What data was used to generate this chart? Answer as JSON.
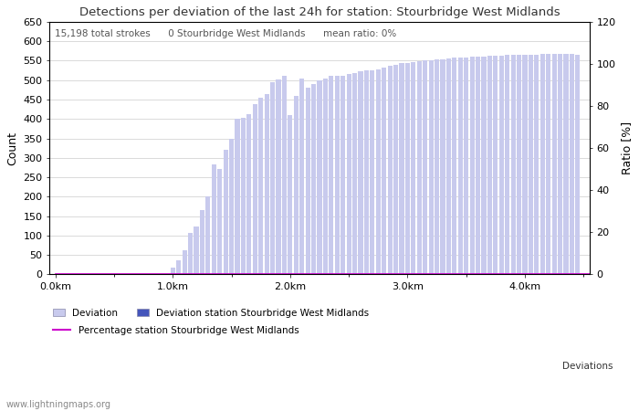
{
  "title": "Detections per deviation of the last 24h for station: Stourbridge West Midlands",
  "ylabel_left": "Count",
  "ylabel_right": "Ratio [%]",
  "annotation": "15,198 total strokes      0 Stourbridge West Midlands      mean ratio: 0%",
  "ylim_left": [
    0,
    650
  ],
  "ylim_right": [
    0,
    120
  ],
  "yticks_left": [
    0,
    50,
    100,
    150,
    200,
    250,
    300,
    350,
    400,
    450,
    500,
    550,
    600,
    650
  ],
  "yticks_right": [
    0,
    20,
    40,
    60,
    80,
    100,
    120
  ],
  "xtick_labels": [
    "0.0km",
    "1.0km",
    "2.0km",
    "3.0km",
    "4.0km"
  ],
  "xtick_positions": [
    0.0,
    1.0,
    2.0,
    3.0,
    4.0
  ],
  "bar_width": 0.04,
  "bar_positions": [
    0.05,
    0.1,
    0.15,
    0.2,
    0.25,
    0.3,
    0.35,
    0.4,
    0.45,
    0.5,
    0.55,
    0.6,
    0.65,
    0.7,
    0.75,
    0.8,
    0.85,
    0.9,
    0.95,
    1.0,
    1.05,
    1.1,
    1.15,
    1.2,
    1.25,
    1.3,
    1.35,
    1.4,
    1.45,
    1.5,
    1.55,
    1.6,
    1.65,
    1.7,
    1.75,
    1.8,
    1.85,
    1.9,
    1.95,
    2.0,
    2.05,
    2.1,
    2.15,
    2.2,
    2.25,
    2.3,
    2.35,
    2.4,
    2.45,
    2.5,
    2.55,
    2.6,
    2.65,
    2.7,
    2.75,
    2.8,
    2.85,
    2.9,
    2.95,
    3.0,
    3.05,
    3.1,
    3.15,
    3.2,
    3.25,
    3.3,
    3.35,
    3.4,
    3.45,
    3.5,
    3.55,
    3.6,
    3.65,
    3.7,
    3.75,
    3.8,
    3.85,
    3.9,
    3.95,
    4.0,
    4.05,
    4.1,
    4.15,
    4.2,
    4.25,
    4.3,
    4.35,
    4.4,
    4.45
  ],
  "bar_heights_all": [
    0,
    0,
    0,
    0,
    0,
    0,
    0,
    0,
    0,
    0,
    0,
    0,
    0,
    0,
    0,
    0,
    0,
    0,
    0,
    18,
    37,
    62,
    107,
    122,
    165,
    200,
    283,
    272,
    320,
    350,
    400,
    402,
    412,
    437,
    455,
    465,
    495,
    502,
    510,
    410,
    460,
    505,
    480,
    490,
    500,
    505,
    510,
    510,
    510,
    515,
    518,
    522,
    525,
    525,
    528,
    532,
    536,
    540,
    543,
    545,
    547,
    548,
    550,
    552,
    553,
    554,
    555,
    557,
    558,
    558,
    560,
    560,
    561,
    562,
    563,
    563,
    564,
    565,
    565,
    566,
    566,
    566,
    567,
    568,
    568,
    568,
    567,
    567,
    565
  ],
  "bar_heights_station": [
    0,
    0,
    0,
    0,
    0,
    0,
    0,
    0,
    0,
    0,
    0,
    0,
    0,
    0,
    0,
    0,
    0,
    0,
    0,
    0,
    0,
    0,
    0,
    0,
    0,
    0,
    0,
    0,
    0,
    0,
    0,
    0,
    0,
    0,
    0,
    0,
    0,
    0,
    0,
    0,
    0,
    0,
    0,
    0,
    0,
    0,
    0,
    0,
    0,
    0,
    0,
    0,
    0,
    0,
    0,
    0,
    0,
    0,
    0,
    0,
    0,
    0,
    0,
    0,
    0,
    0,
    0,
    0,
    0,
    0,
    0,
    0,
    0,
    0,
    0,
    0,
    0,
    0,
    0,
    0,
    0,
    0,
    0,
    0,
    0,
    0,
    0,
    0,
    0
  ],
  "percentage_line_y": 0,
  "color_bar_all": "#c8caed",
  "color_bar_station": "#4455bb",
  "color_percentage_line": "#cc00cc",
  "color_grid": "#cccccc",
  "color_title": "#333333",
  "color_annotation": "#555555",
  "legend_items": [
    {
      "label": "Deviation",
      "type": "bar",
      "color": "#c8caed"
    },
    {
      "label": "Deviation station Stourbridge West Midlands",
      "type": "bar",
      "color": "#4455bb"
    },
    {
      "label": "Percentage station Stourbridge West Midlands",
      "type": "line",
      "color": "#cc00cc"
    }
  ],
  "deviations_label": "Deviations",
  "website": "www.lightningmaps.org",
  "xlim": [
    -0.05,
    4.55
  ]
}
